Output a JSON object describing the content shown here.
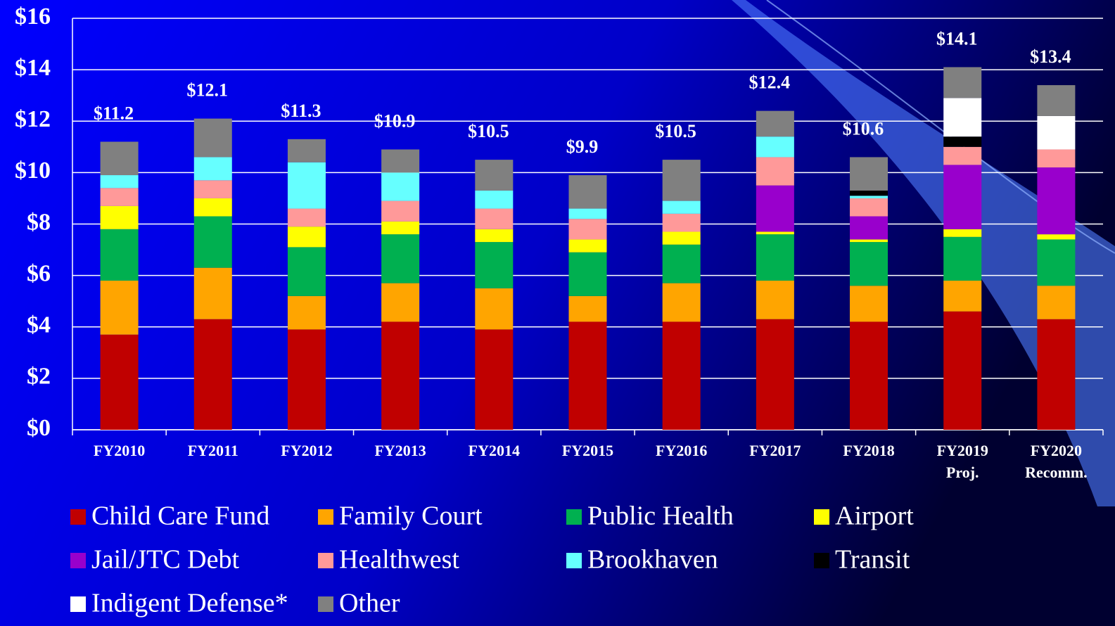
{
  "chart_data": {
    "type": "stacked_bar",
    "categories": [
      "FY2010",
      "FY2011",
      "FY2012",
      "FY2013",
      "FY2014",
      "FY2015",
      "FY2016",
      "FY2017",
      "FY2018",
      "FY2019\nProj.",
      "FY2020\nRecomm."
    ],
    "series": [
      {
        "name": "Child Care Fund",
        "color": "#c00000",
        "values": [
          3.7,
          4.3,
          3.9,
          4.2,
          3.9,
          4.2,
          4.2,
          4.3,
          4.2,
          4.6,
          4.3
        ]
      },
      {
        "name": "Family Court",
        "color": "#ffa500",
        "values": [
          2.1,
          2.0,
          1.3,
          1.5,
          1.6,
          1.0,
          1.5,
          1.5,
          1.4,
          1.2,
          1.3
        ]
      },
      {
        "name": "Public Health",
        "color": "#00b050",
        "values": [
          2.0,
          2.0,
          1.9,
          1.9,
          1.8,
          1.7,
          1.5,
          1.8,
          1.7,
          1.7,
          1.8
        ]
      },
      {
        "name": "Airport",
        "color": "#ffff00",
        "values": [
          0.9,
          0.7,
          0.8,
          0.5,
          0.5,
          0.5,
          0.5,
          0.1,
          0.1,
          0.3,
          0.2
        ]
      },
      {
        "name": "Jail/JTC Debt",
        "color": "#9900cc",
        "values": [
          0,
          0,
          0,
          0,
          0,
          0,
          0,
          1.8,
          0.9,
          2.5,
          2.6
        ]
      },
      {
        "name": "Healthwest",
        "color": "#ff9999",
        "values": [
          0.7,
          0.7,
          0.7,
          0.8,
          0.8,
          0.8,
          0.7,
          1.1,
          0.7,
          0.7,
          0.7
        ]
      },
      {
        "name": "Brookhaven",
        "color": "#66ffff",
        "values": [
          0.5,
          0.9,
          1.8,
          1.1,
          0.7,
          0.4,
          0.5,
          0.8,
          0.1,
          0,
          0
        ]
      },
      {
        "name": "Transit",
        "color": "#000000",
        "values": [
          0,
          0,
          0,
          0,
          0,
          0,
          0,
          0,
          0.2,
          0.4,
          0
        ]
      },
      {
        "name": "Indigent Defense*",
        "color": "#ffffff",
        "values": [
          0,
          0,
          0,
          0,
          0,
          0,
          0,
          0,
          0,
          1.5,
          1.3
        ]
      },
      {
        "name": "Other",
        "color": "#808080",
        "values": [
          1.3,
          1.5,
          0.9,
          0.9,
          1.2,
          1.3,
          1.6,
          1.0,
          1.3,
          1.2,
          1.2
        ]
      }
    ],
    "totals": [
      11.2,
      12.1,
      11.3,
      10.9,
      10.5,
      9.9,
      10.5,
      12.4,
      10.6,
      14.1,
      13.4
    ],
    "total_labels": [
      "$11.2",
      "$12.1",
      "$11.3",
      "$10.9",
      "$10.5",
      "$9.9",
      "$10.5",
      "$12.4",
      "$10.6",
      "$14.1",
      "$13.4"
    ],
    "ylim": [
      0,
      16
    ],
    "yticks": [
      {
        "value": 0,
        "label": "$0"
      },
      {
        "value": 2,
        "label": "$2"
      },
      {
        "value": 4,
        "label": "$4"
      },
      {
        "value": 6,
        "label": "$6"
      },
      {
        "value": 8,
        "label": "$8"
      },
      {
        "value": 10,
        "label": "$10"
      },
      {
        "value": 12,
        "label": "$12"
      },
      {
        "value": 14,
        "label": "$14"
      },
      {
        "value": 16,
        "label": "$16"
      }
    ],
    "grid": true
  }
}
